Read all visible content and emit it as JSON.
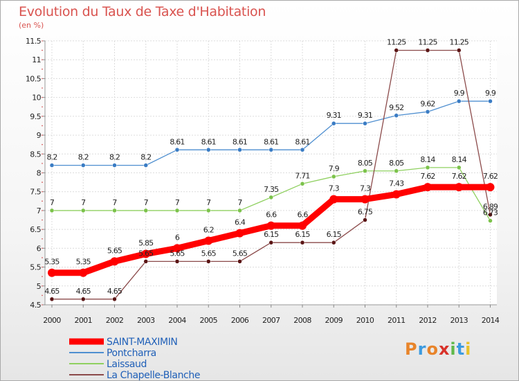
{
  "chart_data": {
    "type": "line",
    "title": "Evolution du Taux de Taxe d'Habitation",
    "subtitle": "(en %)",
    "xlabel": "",
    "ylabel": "",
    "x": [
      "2000",
      "2001",
      "2002",
      "2003",
      "2004",
      "2005",
      "2006",
      "2007",
      "2008",
      "2009",
      "2010",
      "2011",
      "2012",
      "2013",
      "2014"
    ],
    "ylim": [
      4.5,
      11.5
    ],
    "yticks": [
      "4.5",
      "5",
      "5.5",
      "6",
      "6.5",
      "7",
      "7.5",
      "8",
      "8.5",
      "9",
      "9.5",
      "10",
      "10.5",
      "11",
      "11.5"
    ],
    "grid": true,
    "legend_position": "bottom-left",
    "series": [
      {
        "name": "Pontcharra",
        "color": "#4f8fd0",
        "marker": "#3a7cc4",
        "values": [
          8.2,
          8.2,
          8.2,
          8.2,
          8.61,
          8.61,
          8.61,
          8.61,
          8.61,
          9.31,
          9.31,
          9.52,
          9.62,
          9.9,
          9.9
        ],
        "labels": [
          "8.2",
          "8.2",
          "8.2",
          "8.2",
          "8.61",
          "8.61",
          "8.61",
          "8.61",
          "8.61",
          "9.31",
          "9.31",
          "9.52",
          "9.62",
          "9.9",
          "9.9"
        ]
      },
      {
        "name": "Laissaud",
        "color": "#8fd060",
        "marker": "#7bc24a",
        "values": [
          7,
          7,
          7,
          7,
          7,
          7,
          7,
          7.35,
          7.71,
          7.9,
          8.05,
          8.05,
          8.14,
          8.14,
          6.73
        ],
        "labels": [
          "7",
          "7",
          "7",
          "7",
          "7",
          "7",
          "7",
          "7.35",
          "7.71",
          "7.9",
          "8.05",
          "8.05",
          "8.14",
          "8.14",
          "6.73"
        ]
      },
      {
        "name": "La Chapelle-Blanche",
        "color": "#8b4a4a",
        "marker": "#5a1414",
        "values": [
          4.65,
          4.65,
          4.65,
          5.65,
          5.65,
          5.65,
          5.65,
          6.15,
          6.15,
          6.15,
          6.75,
          11.25,
          11.25,
          11.25,
          6.89
        ],
        "labels": [
          "4.65",
          "4.65",
          "4.65",
          "5.65",
          "5.65",
          "5.65",
          "5.65",
          "6.15",
          "6.15",
          "6.15",
          "6.75",
          "11.25",
          "11.25",
          "11.25",
          "6.89"
        ]
      },
      {
        "name": "SAINT-MAXIMIN",
        "color": "#ff0000",
        "marker": "#ff0000",
        "values": [
          5.35,
          5.35,
          5.65,
          5.85,
          6,
          6.2,
          6.4,
          6.6,
          6.6,
          7.3,
          7.3,
          7.43,
          7.62,
          7.62,
          7.62
        ],
        "labels": [
          "5.35",
          "5.35",
          "5.65",
          "5.85",
          "6",
          "6.2",
          "6.4",
          "6.6",
          "6.6",
          "7.3",
          "7.3",
          "7.43",
          "7.62",
          "7.62",
          "7.62"
        ]
      }
    ],
    "legend": [
      {
        "name": "SAINT-MAXIMIN",
        "color": "#ff0000"
      },
      {
        "name": "Pontcharra",
        "color": "#4f8fd0"
      },
      {
        "name": "Laissaud",
        "color": "#8fd060"
      },
      {
        "name": "La Chapelle-Blanche",
        "color": "#8b4a4a"
      }
    ]
  },
  "logo": {
    "letters": [
      "P",
      "r",
      "o",
      "x",
      "i",
      "t",
      "i"
    ],
    "colors": [
      "#e8842a",
      "#3c9be0",
      "#e8842a",
      "#d8322a",
      "#5fb84a",
      "#3c9be0",
      "#e8c22a"
    ]
  }
}
